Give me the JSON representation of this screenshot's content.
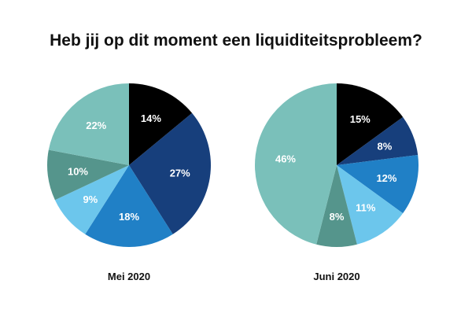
{
  "title": "Heb jij op dit moment een liquiditeitsprobleem?",
  "colors": {
    "black": "#000000",
    "darkBlue": "#173F7C",
    "blue": "#2080C6",
    "lightBlue": "#6CC6EC",
    "darkTeal": "#55958C",
    "teal": "#7AC0BA"
  },
  "chart_data": [
    {
      "type": "pie",
      "title": "Mei 2020",
      "slices": [
        {
          "label": "14%",
          "value": 14,
          "color": "#000000"
        },
        {
          "label": "27%",
          "value": 27,
          "color": "#173F7C"
        },
        {
          "label": "18%",
          "value": 18,
          "color": "#2080C6"
        },
        {
          "label": "9%",
          "value": 9,
          "color": "#6CC6EC"
        },
        {
          "label": "10%",
          "value": 10,
          "color": "#55958C"
        },
        {
          "label": "22%",
          "value": 22,
          "color": "#7AC0BA"
        }
      ]
    },
    {
      "type": "pie",
      "title": "Juni 2020",
      "slices": [
        {
          "label": "15%",
          "value": 15,
          "color": "#000000"
        },
        {
          "label": "8%",
          "value": 8,
          "color": "#173F7C"
        },
        {
          "label": "12%",
          "value": 12,
          "color": "#2080C6"
        },
        {
          "label": "11%",
          "value": 11,
          "color": "#6CC6EC"
        },
        {
          "label": "8%",
          "value": 8,
          "color": "#55958C"
        },
        {
          "label": "46%",
          "value": 46,
          "color": "#7AC0BA"
        }
      ]
    }
  ]
}
